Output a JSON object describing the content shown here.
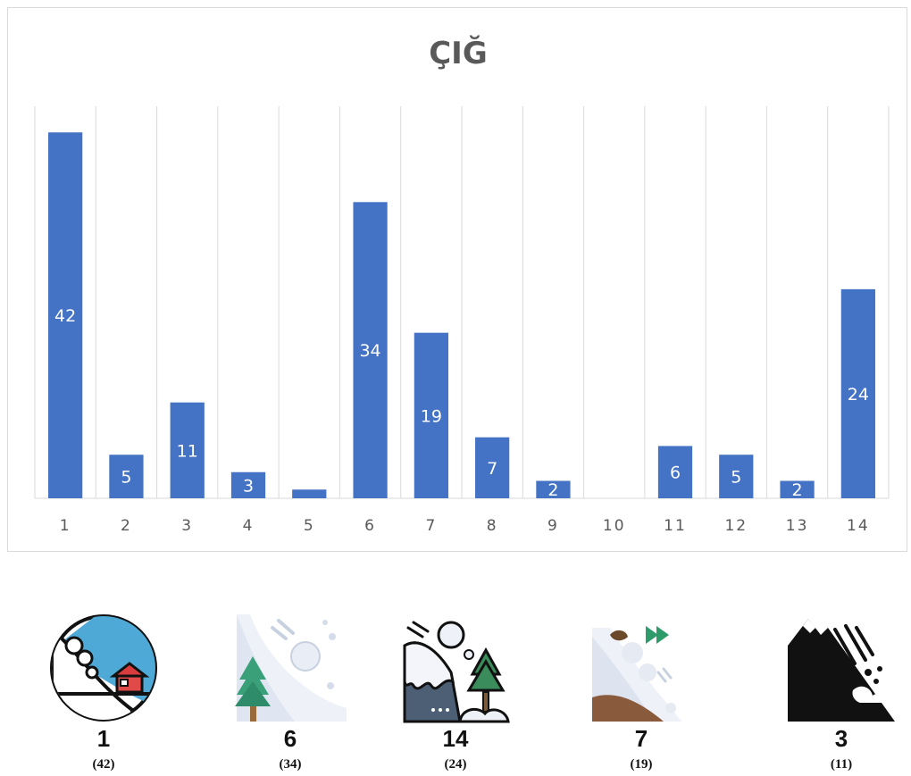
{
  "chart_data": {
    "type": "bar",
    "title": "ÇIĞ",
    "categories": [
      "1",
      "2",
      "3",
      "4",
      "5",
      "6",
      "7",
      "8",
      "9",
      "10",
      "11",
      "12",
      "13",
      "14"
    ],
    "values": [
      42,
      5,
      11,
      3,
      1,
      34,
      19,
      7,
      2,
      0,
      6,
      5,
      2,
      24
    ],
    "data_labels": [
      "42",
      "5",
      "11",
      "3",
      "",
      "34",
      "19",
      "7",
      "2",
      "",
      "6",
      "5",
      "2",
      "24"
    ],
    "xlabel": "",
    "ylabel": "",
    "ylim": [
      0,
      45
    ],
    "grid": "vertical",
    "legend": "none",
    "bar_color": "#4472c4"
  },
  "icons": [
    {
      "icon": "avalanche-house-icon",
      "rank": "1",
      "count": "(42)"
    },
    {
      "icon": "snowball-slope-tree-icon",
      "rank": "6",
      "count": "(34)"
    },
    {
      "icon": "avalanche-cliff-tree-icon",
      "rank": "14",
      "count": "(24)"
    },
    {
      "icon": "landslide-arrow-icon",
      "rank": "7",
      "count": "(19)"
    },
    {
      "icon": "mountain-rockfall-icon",
      "rank": "3",
      "count": "(11)"
    }
  ],
  "colors": {
    "bar": "#4472c4",
    "grid": "#d9d9d9",
    "axis_text": "#595959"
  }
}
